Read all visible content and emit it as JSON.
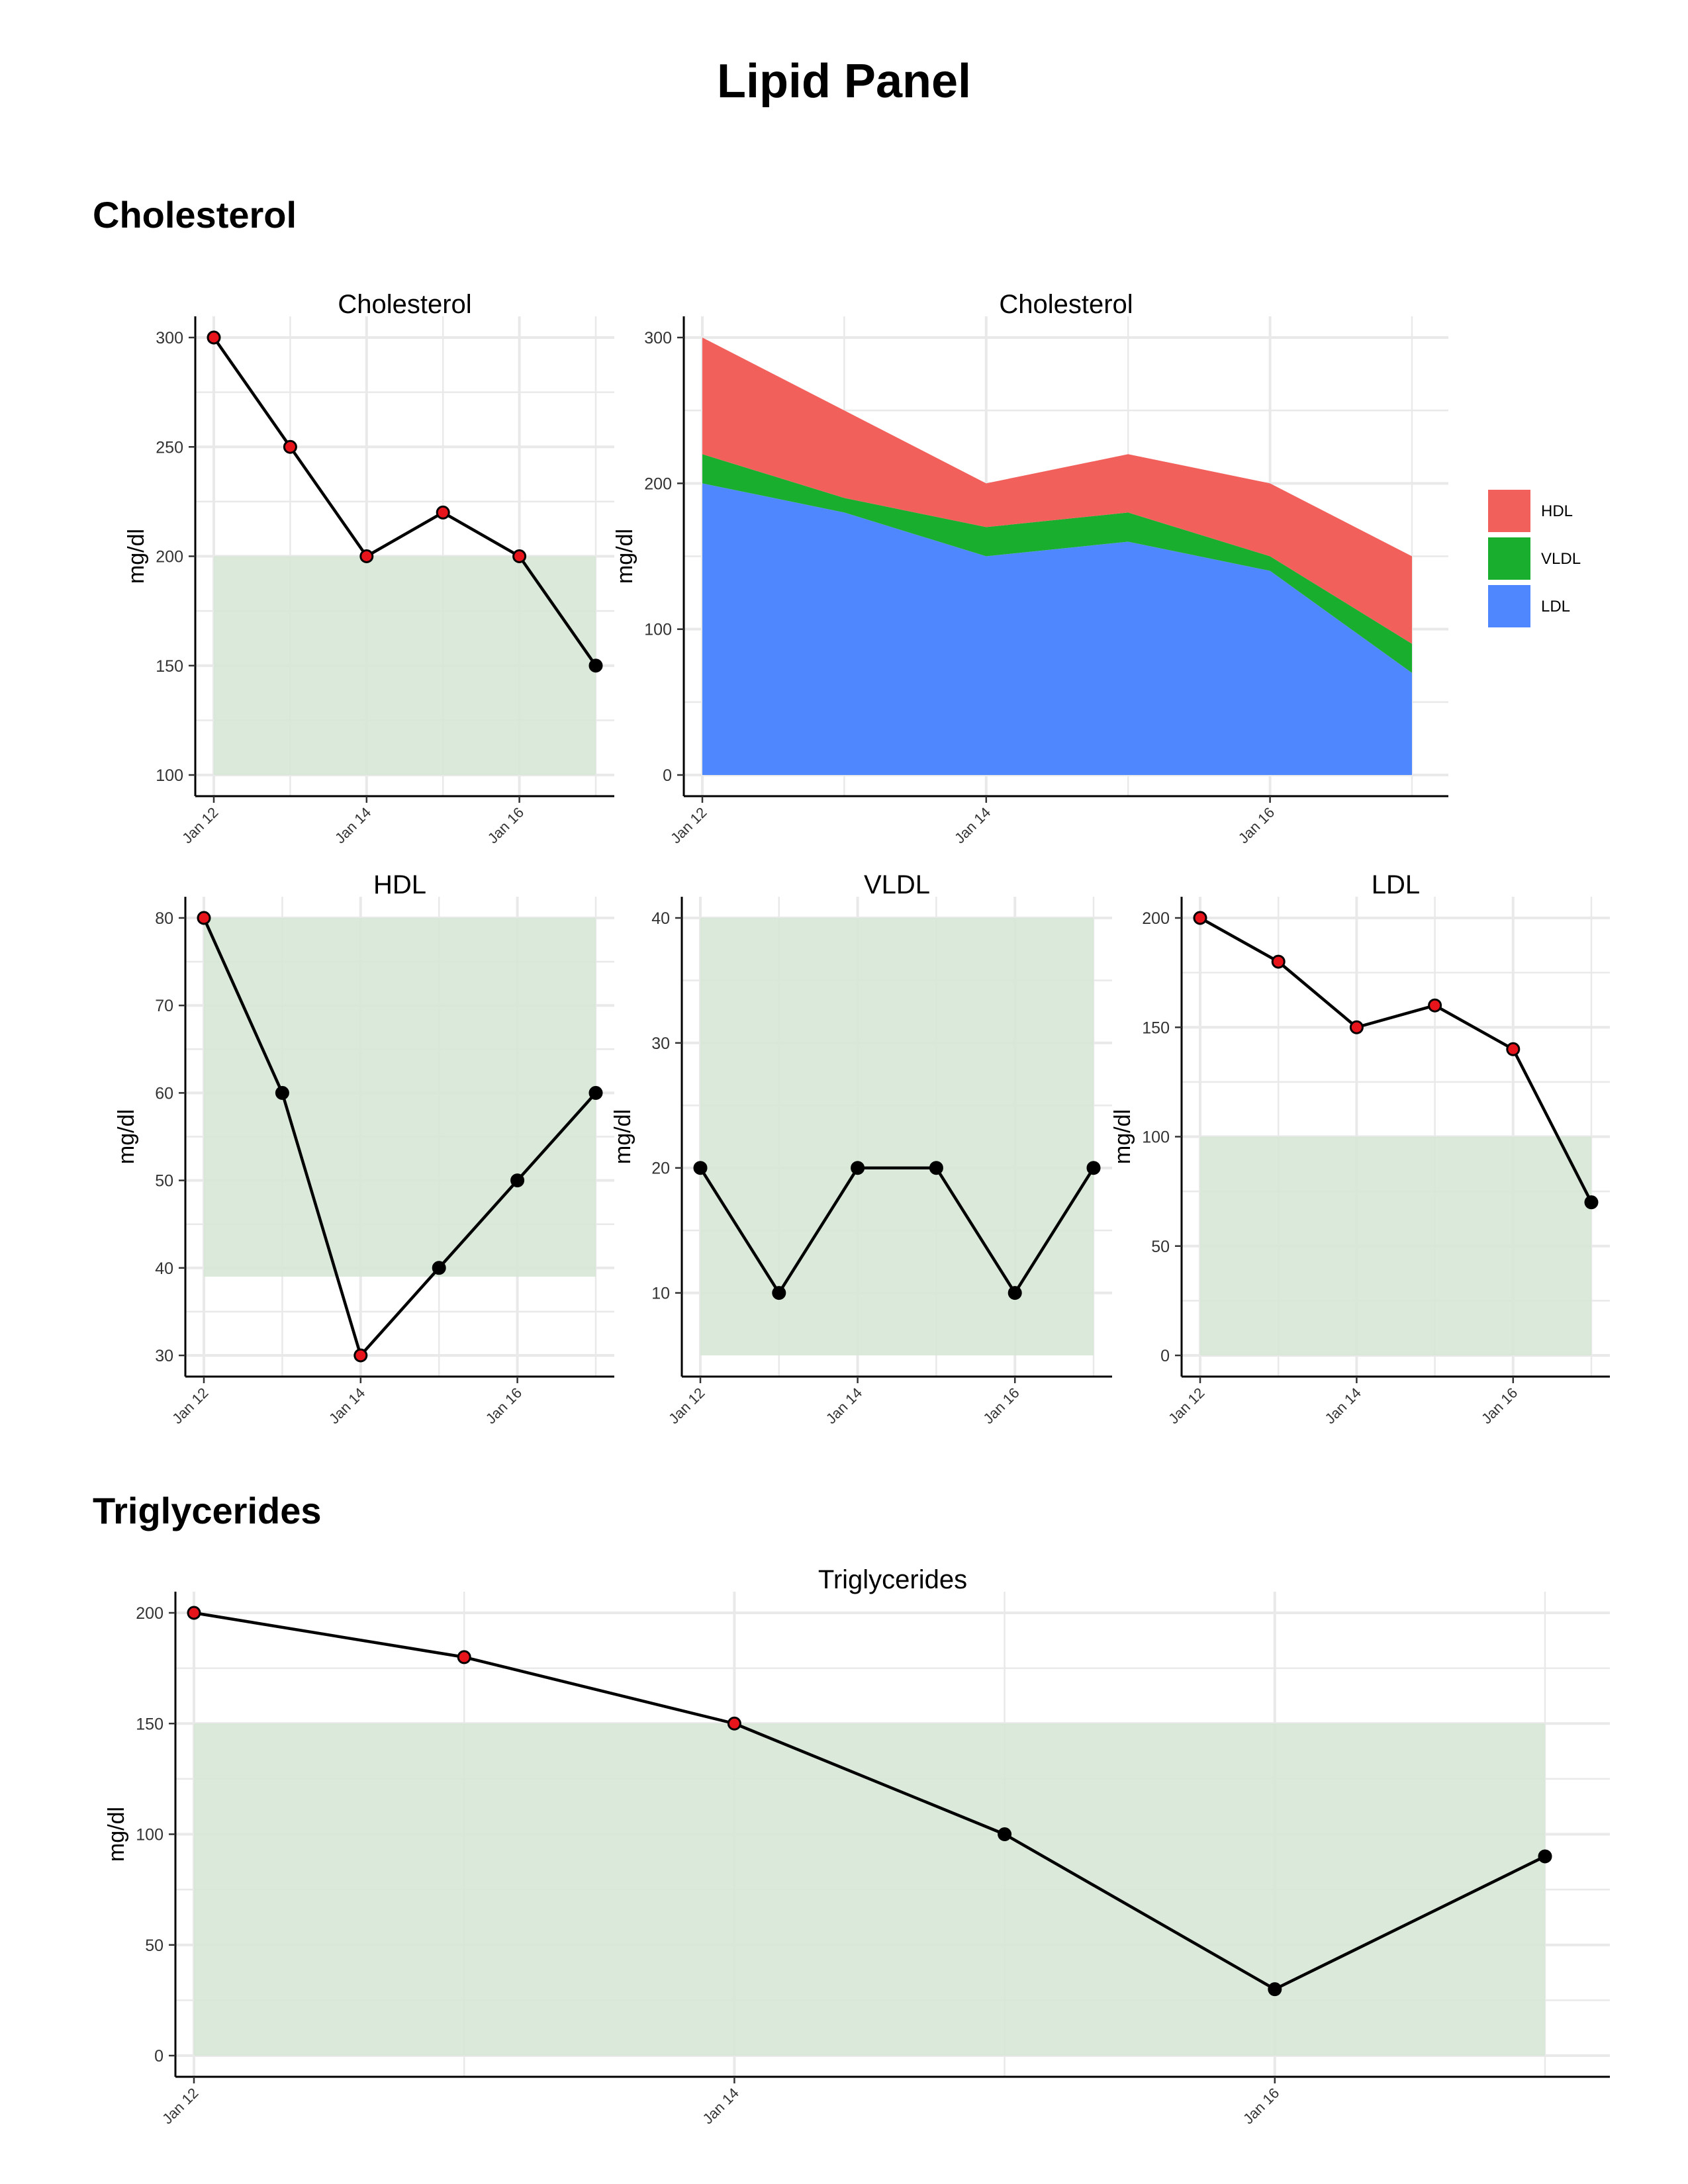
{
  "page_title": "Lipid Panel",
  "sections": {
    "cholesterol": "Cholesterol",
    "triglycerides": "Triglycerides"
  },
  "colors": {
    "point_out_of_range": "#e8141b",
    "point_in_range": "#000000",
    "reference_band": "#d6e7d6",
    "hdl": "#f2605c",
    "vldl": "#1aae2e",
    "ldl": "#4f87ff",
    "grid": "#e9e9e9"
  },
  "chart_data": [
    {
      "id": "cholesterol-line",
      "type": "line",
      "title": "Cholesterol",
      "ylabel": "mg/dl",
      "x": [
        "Jan 12",
        "Jan 13",
        "Jan 14",
        "Jan 15",
        "Jan 16",
        "Jan 17"
      ],
      "xticks": [
        "Jan 12",
        "Jan 14",
        "Jan 16"
      ],
      "values": [
        300,
        250,
        200,
        220,
        200,
        150
      ],
      "flags": [
        true,
        true,
        true,
        true,
        true,
        false
      ],
      "reference_range": [
        100,
        200
      ],
      "ylim": [
        100,
        300
      ],
      "yticks": [
        100,
        150,
        200,
        250,
        300
      ],
      "grid": true
    },
    {
      "id": "cholesterol-area",
      "type": "area",
      "title": "Cholesterol",
      "ylabel": "mg/dl",
      "x": [
        "Jan 12",
        "Jan 13",
        "Jan 14",
        "Jan 15",
        "Jan 16",
        "Jan 17"
      ],
      "xticks": [
        "Jan 12",
        "Jan 14",
        "Jan 16"
      ],
      "stacked": true,
      "series": [
        {
          "name": "LDL",
          "values": [
            200,
            180,
            150,
            160,
            140,
            70
          ]
        },
        {
          "name": "VLDL",
          "values": [
            20,
            10,
            20,
            20,
            10,
            20
          ]
        },
        {
          "name": "HDL",
          "values": [
            80,
            60,
            30,
            40,
            50,
            60
          ]
        }
      ],
      "legend": [
        "HDL",
        "VLDL",
        "LDL"
      ],
      "legend_position": "right",
      "ylim": [
        0,
        300
      ],
      "yticks": [
        0,
        100,
        200,
        300
      ],
      "grid": true
    },
    {
      "id": "hdl-line",
      "type": "line",
      "title": "HDL",
      "ylabel": "mg/dl",
      "x": [
        "Jan 12",
        "Jan 13",
        "Jan 14",
        "Jan 15",
        "Jan 16",
        "Jan 17"
      ],
      "xticks": [
        "Jan 12",
        "Jan 14",
        "Jan 16"
      ],
      "values": [
        80,
        60,
        30,
        40,
        50,
        60
      ],
      "flags": [
        true,
        false,
        true,
        false,
        false,
        false
      ],
      "reference_range": [
        39,
        80
      ],
      "ylim": [
        30,
        80
      ],
      "yticks": [
        30,
        40,
        50,
        60,
        70,
        80
      ],
      "grid": true
    },
    {
      "id": "vldl-line",
      "type": "line",
      "title": "VLDL",
      "ylabel": "mg/dl",
      "x": [
        "Jan 12",
        "Jan 13",
        "Jan 14",
        "Jan 15",
        "Jan 16",
        "Jan 17"
      ],
      "xticks": [
        "Jan 12",
        "Jan 14",
        "Jan 16"
      ],
      "values": [
        20,
        10,
        20,
        20,
        10,
        20
      ],
      "flags": [
        false,
        false,
        false,
        false,
        false,
        false
      ],
      "reference_range": [
        5,
        40
      ],
      "ylim": [
        5,
        40
      ],
      "yticks": [
        10,
        20,
        30,
        40
      ],
      "grid": true
    },
    {
      "id": "ldl-line",
      "type": "line",
      "title": "LDL",
      "ylabel": "mg/dl",
      "x": [
        "Jan 12",
        "Jan 13",
        "Jan 14",
        "Jan 15",
        "Jan 16",
        "Jan 17"
      ],
      "xticks": [
        "Jan 12",
        "Jan 14",
        "Jan 16"
      ],
      "values": [
        200,
        180,
        150,
        160,
        140,
        70
      ],
      "flags": [
        true,
        true,
        true,
        true,
        true,
        false
      ],
      "reference_range": [
        0,
        100
      ],
      "ylim": [
        0,
        200
      ],
      "yticks": [
        0,
        50,
        100,
        150,
        200
      ],
      "grid": true
    },
    {
      "id": "triglycerides-line",
      "type": "line",
      "title": "Triglycerides",
      "ylabel": "mg/dl",
      "x": [
        "Jan 12",
        "Jan 13",
        "Jan 14",
        "Jan 15",
        "Jan 16",
        "Jan 17"
      ],
      "xticks": [
        "Jan 12",
        "Jan 14",
        "Jan 16"
      ],
      "values": [
        200,
        180,
        150,
        100,
        30,
        90
      ],
      "flags": [
        true,
        true,
        true,
        false,
        false,
        false
      ],
      "reference_range": [
        0,
        150
      ],
      "ylim": [
        0,
        200
      ],
      "yticks": [
        0,
        50,
        100,
        150,
        200
      ],
      "grid": true
    }
  ]
}
